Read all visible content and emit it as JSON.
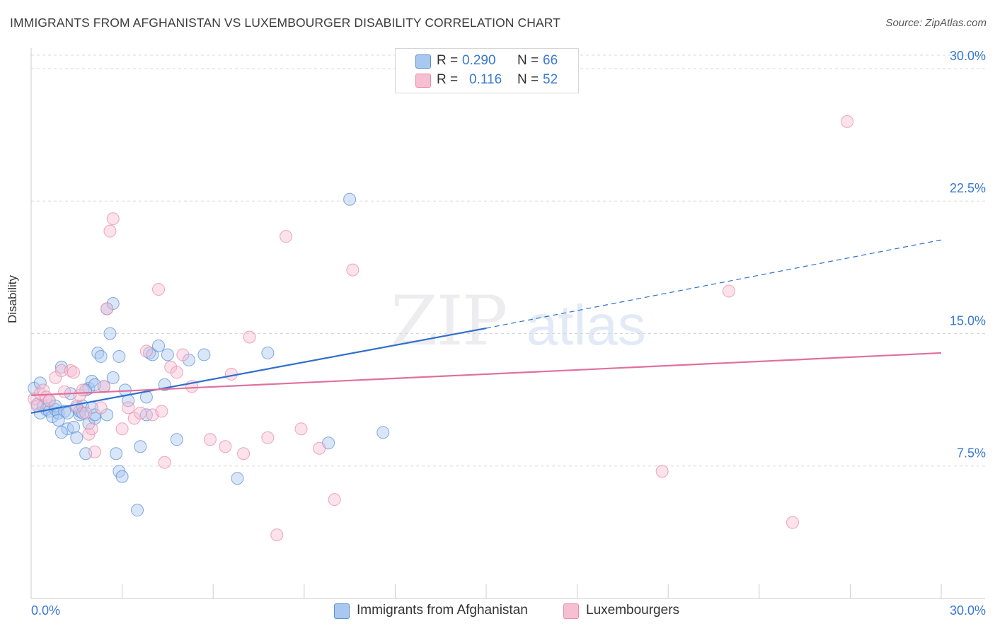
{
  "title": "IMMIGRANTS FROM AFGHANISTAN VS LUXEMBOURGER DISABILITY CORRELATION CHART",
  "source": "Source: ZipAtlas.com",
  "watermark": {
    "zip": "ZIP",
    "atlas": "atlas"
  },
  "legend": {
    "series1": {
      "r_label": "R =",
      "r_value": "0.290",
      "n_label": "N =",
      "n_value": "66"
    },
    "series2": {
      "r_label": "R =",
      "r_value": "0.116",
      "n_label": "N =",
      "n_value": "52"
    }
  },
  "colors": {
    "blue_fill": "#a8c8f0",
    "blue_stroke": "#5b8fd6",
    "blue_line": "#2f6fcd",
    "pink_fill": "#f6bfd2",
    "pink_stroke": "#e88aaa",
    "pink_line": "#e0709a",
    "tick_text": "#3a78d0",
    "grid": "#d8d8d8"
  },
  "chart_data": {
    "type": "scatter",
    "title": "IMMIGRANTS FROM AFGHANISTAN VS LUXEMBOURGER DISABILITY CORRELATION CHART",
    "xlabel": "",
    "ylabel": "Disability",
    "xlim": [
      0,
      30
    ],
    "ylim": [
      0,
      31
    ],
    "x_tick_labels": [
      "0.0%",
      "30.0%"
    ],
    "y_ticks": [
      7.5,
      15.0,
      22.5,
      30.0
    ],
    "y_tick_labels": [
      "7.5%",
      "15.0%",
      "22.5%",
      "30.0%"
    ],
    "grid": "horizontal dashed",
    "legend_position": "top-center",
    "series": [
      {
        "name": "Immigrants from Afghanistan",
        "color": "#a8c8f0",
        "trend": {
          "x0": 0,
          "y0": 10.5,
          "x1": 15.0,
          "y1": 15.3,
          "dashed_to_x": 30,
          "dashed_to_y": 20.3
        },
        "points": [
          [
            0.1,
            11.9
          ],
          [
            0.2,
            11.0
          ],
          [
            0.3,
            12.2
          ],
          [
            0.3,
            10.5
          ],
          [
            0.4,
            10.9
          ],
          [
            0.5,
            10.7
          ],
          [
            0.6,
            10.6
          ],
          [
            0.6,
            11.2
          ],
          [
            0.7,
            10.3
          ],
          [
            0.8,
            10.7
          ],
          [
            0.8,
            10.9
          ],
          [
            0.9,
            10.5
          ],
          [
            1.0,
            13.1
          ],
          [
            1.1,
            10.6
          ],
          [
            1.2,
            10.5
          ],
          [
            1.2,
            9.6
          ],
          [
            1.3,
            11.6
          ],
          [
            1.4,
            9.7
          ],
          [
            1.5,
            9.1
          ],
          [
            1.5,
            10.8
          ],
          [
            1.6,
            10.4
          ],
          [
            1.6,
            10.6
          ],
          [
            1.7,
            10.9
          ],
          [
            1.7,
            10.5
          ],
          [
            1.8,
            8.2
          ],
          [
            1.9,
            9.9
          ],
          [
            1.9,
            11.9
          ],
          [
            2.0,
            12.3
          ],
          [
            2.0,
            10.8
          ],
          [
            2.1,
            10.2
          ],
          [
            2.1,
            10.4
          ],
          [
            2.2,
            13.9
          ],
          [
            2.3,
            13.7
          ],
          [
            2.4,
            12.0
          ],
          [
            2.5,
            10.4
          ],
          [
            2.5,
            16.4
          ],
          [
            2.6,
            15.0
          ],
          [
            2.7,
            12.5
          ],
          [
            2.7,
            16.7
          ],
          [
            2.8,
            8.2
          ],
          [
            2.9,
            7.2
          ],
          [
            2.9,
            13.7
          ],
          [
            3.0,
            6.9
          ],
          [
            3.1,
            11.8
          ],
          [
            3.2,
            11.2
          ],
          [
            3.5,
            5.0
          ],
          [
            3.6,
            8.6
          ],
          [
            3.8,
            10.4
          ],
          [
            3.8,
            11.4
          ],
          [
            3.9,
            13.9
          ],
          [
            4.0,
            13.8
          ],
          [
            4.2,
            14.3
          ],
          [
            4.4,
            12.1
          ],
          [
            4.5,
            13.8
          ],
          [
            4.8,
            9.0
          ],
          [
            5.2,
            13.5
          ],
          [
            5.7,
            13.8
          ],
          [
            6.8,
            6.8
          ],
          [
            7.8,
            13.9
          ],
          [
            9.8,
            8.8
          ],
          [
            10.5,
            22.6
          ],
          [
            11.6,
            9.4
          ],
          [
            1.0,
            9.4
          ],
          [
            1.8,
            11.8
          ],
          [
            2.1,
            12.1
          ],
          [
            0.9,
            10.1
          ]
        ]
      },
      {
        "name": "Luxembourgers",
        "color": "#f6bfd2",
        "trend": {
          "x0": 0,
          "y0": 11.5,
          "x1": 30,
          "y1": 13.9
        },
        "points": [
          [
            0.1,
            11.3
          ],
          [
            0.2,
            10.9
          ],
          [
            0.3,
            11.6
          ],
          [
            0.4,
            11.8
          ],
          [
            0.5,
            11.4
          ],
          [
            0.6,
            11.2
          ],
          [
            0.8,
            12.5
          ],
          [
            1.0,
            12.9
          ],
          [
            1.1,
            11.7
          ],
          [
            1.3,
            12.9
          ],
          [
            1.4,
            12.8
          ],
          [
            1.5,
            10.9
          ],
          [
            1.6,
            11.5
          ],
          [
            1.7,
            11.8
          ],
          [
            1.8,
            10.5
          ],
          [
            1.9,
            9.3
          ],
          [
            2.0,
            9.6
          ],
          [
            2.1,
            8.3
          ],
          [
            2.3,
            10.8
          ],
          [
            2.4,
            12.0
          ],
          [
            2.5,
            16.4
          ],
          [
            2.6,
            20.8
          ],
          [
            2.7,
            21.5
          ],
          [
            3.0,
            9.6
          ],
          [
            3.2,
            10.8
          ],
          [
            3.4,
            10.2
          ],
          [
            3.6,
            10.5
          ],
          [
            3.8,
            14.0
          ],
          [
            4.0,
            10.4
          ],
          [
            4.2,
            17.5
          ],
          [
            4.3,
            10.6
          ],
          [
            4.4,
            7.7
          ],
          [
            4.6,
            13.1
          ],
          [
            4.8,
            12.8
          ],
          [
            5.0,
            13.8
          ],
          [
            5.3,
            12.0
          ],
          [
            5.9,
            9.0
          ],
          [
            6.4,
            8.6
          ],
          [
            6.6,
            12.7
          ],
          [
            7.0,
            8.2
          ],
          [
            7.2,
            14.8
          ],
          [
            7.8,
            9.1
          ],
          [
            8.1,
            3.6
          ],
          [
            8.4,
            20.5
          ],
          [
            8.9,
            9.6
          ],
          [
            9.5,
            8.5
          ],
          [
            10.0,
            5.6
          ],
          [
            10.6,
            18.6
          ],
          [
            20.8,
            7.2
          ],
          [
            23.0,
            17.4
          ],
          [
            25.1,
            4.3
          ],
          [
            26.9,
            27.0
          ]
        ]
      }
    ]
  },
  "bottom_legend": [
    "Immigrants from Afghanistan",
    "Luxembourgers"
  ]
}
